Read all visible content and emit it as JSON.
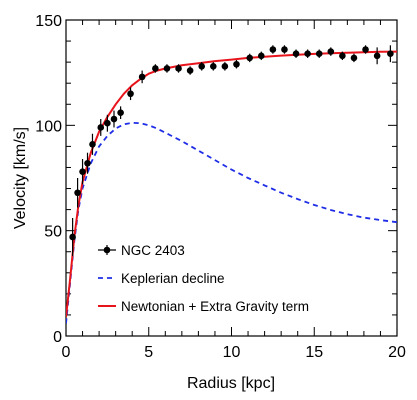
{
  "chart_data": {
    "type": "scatter",
    "xlabel": "Radius [kpc]",
    "ylabel": "Velocity [km/s]",
    "xlim": [
      0,
      20
    ],
    "ylim": [
      0,
      150
    ],
    "xticks": [
      0,
      5,
      10,
      15,
      20
    ],
    "yticks": [
      0,
      50,
      100,
      150
    ],
    "grid": false,
    "legend_position": "lower-left",
    "series": [
      {
        "name": "NGC 2403",
        "kind": "points-with-errors",
        "color": "#000000",
        "points": [
          {
            "x": 0.4,
            "y": 47,
            "err": 9
          },
          {
            "x": 0.7,
            "y": 68,
            "err": 7
          },
          {
            "x": 1.0,
            "y": 78,
            "err": 6
          },
          {
            "x": 1.3,
            "y": 82,
            "err": 5
          },
          {
            "x": 1.6,
            "y": 91,
            "err": 5
          },
          {
            "x": 2.1,
            "y": 99,
            "err": 4
          },
          {
            "x": 2.5,
            "y": 101,
            "err": 4
          },
          {
            "x": 2.9,
            "y": 103,
            "err": 4
          },
          {
            "x": 3.3,
            "y": 106,
            "err": 3
          },
          {
            "x": 3.9,
            "y": 115,
            "err": 3
          },
          {
            "x": 4.6,
            "y": 123,
            "err": 3
          },
          {
            "x": 5.4,
            "y": 127,
            "err": 2
          },
          {
            "x": 6.1,
            "y": 127,
            "err": 2
          },
          {
            "x": 6.8,
            "y": 127,
            "err": 2
          },
          {
            "x": 7.5,
            "y": 126,
            "err": 2
          },
          {
            "x": 8.2,
            "y": 128,
            "err": 2
          },
          {
            "x": 8.9,
            "y": 128,
            "err": 2
          },
          {
            "x": 9.6,
            "y": 128,
            "err": 2
          },
          {
            "x": 10.3,
            "y": 129,
            "err": 2
          },
          {
            "x": 11.1,
            "y": 132,
            "err": 2
          },
          {
            "x": 11.8,
            "y": 133,
            "err": 2
          },
          {
            "x": 12.5,
            "y": 136,
            "err": 2
          },
          {
            "x": 13.2,
            "y": 136,
            "err": 2
          },
          {
            "x": 13.9,
            "y": 134,
            "err": 2
          },
          {
            "x": 14.6,
            "y": 134,
            "err": 2
          },
          {
            "x": 15.3,
            "y": 134,
            "err": 2
          },
          {
            "x": 16.0,
            "y": 135,
            "err": 2
          },
          {
            "x": 16.7,
            "y": 133,
            "err": 2
          },
          {
            "x": 17.4,
            "y": 132,
            "err": 2
          },
          {
            "x": 18.1,
            "y": 136,
            "err": 2
          },
          {
            "x": 18.8,
            "y": 133,
            "err": 4
          },
          {
            "x": 19.6,
            "y": 134,
            "err": 4
          }
        ]
      },
      {
        "name": "Keplerian decline",
        "kind": "dashed-line",
        "color": "#1f2ee6",
        "x": [
          0,
          0.25,
          0.5,
          0.75,
          1,
          1.5,
          2,
          2.5,
          3,
          3.5,
          4,
          4.5,
          5,
          5.5,
          6,
          7,
          8,
          9,
          10,
          11,
          12,
          13,
          14,
          15,
          16,
          17,
          18,
          19,
          20
        ],
        "y": [
          6,
          25,
          45,
          60,
          70,
          82,
          90,
          95,
          98.5,
          100.5,
          101.2,
          101,
          100,
          98.5,
          96.5,
          92.5,
          88,
          83.5,
          79,
          75,
          71.5,
          68,
          65,
          62.2,
          59.8,
          57.8,
          56.2,
          55,
          54
        ]
      },
      {
        "name": "Newtonian + Extra Gravity term",
        "kind": "solid-line",
        "color": "#e8141b",
        "x": [
          0,
          0.25,
          0.5,
          0.75,
          1,
          1.5,
          2,
          2.5,
          3,
          3.5,
          4,
          4.5,
          5,
          5.5,
          6,
          7,
          8,
          9,
          10,
          11,
          12,
          13,
          14,
          15,
          16,
          17,
          18,
          19,
          20
        ],
        "y": [
          9,
          27,
          47,
          62,
          73,
          87,
          97,
          104,
          110,
          115,
          119,
          122,
          124.5,
          126,
          127,
          128.5,
          129.5,
          130.5,
          131.2,
          132,
          132.6,
          133.1,
          133.5,
          133.9,
          134.2,
          134.5,
          134.7,
          134.9,
          135
        ]
      }
    ]
  }
}
